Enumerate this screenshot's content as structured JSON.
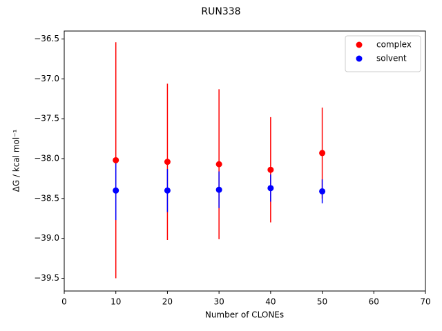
{
  "chart_data": {
    "type": "errorbar-scatter",
    "title": "RUN338",
    "x_label": "Number of CLONEs",
    "y_label": "ΔG / kcal mol⁻¹",
    "xlim": [
      0,
      70
    ],
    "xticks": [
      0,
      10,
      20,
      30,
      40,
      50,
      60,
      70
    ],
    "ylim": [
      -39.66,
      -36.4
    ],
    "yticks": [
      {
        "value": -36.5,
        "label": "−36.5"
      },
      {
        "value": -37.0,
        "label": "−37.0"
      },
      {
        "value": -37.5,
        "label": "−37.5"
      },
      {
        "value": -38.0,
        "label": "−38.0"
      },
      {
        "value": -38.5,
        "label": "−38.5"
      },
      {
        "value": -39.0,
        "label": "−39.0"
      },
      {
        "value": -39.5,
        "label": "−39.5"
      }
    ],
    "legend": "upper right",
    "x": [
      10,
      20,
      30,
      40,
      50
    ],
    "series": [
      {
        "name": "complex",
        "color": "#ff0000",
        "values": [
          -38.02,
          -38.04,
          -38.07,
          -38.14,
          -37.93
        ],
        "errors": [
          1.48,
          0.98,
          0.94,
          0.66,
          0.57
        ]
      },
      {
        "name": "solvent",
        "color": "#0000ff",
        "values": [
          -38.4,
          -38.4,
          -38.39,
          -38.37,
          -38.41
        ],
        "errors": [
          0.37,
          0.27,
          0.23,
          0.17,
          0.15
        ]
      }
    ]
  }
}
